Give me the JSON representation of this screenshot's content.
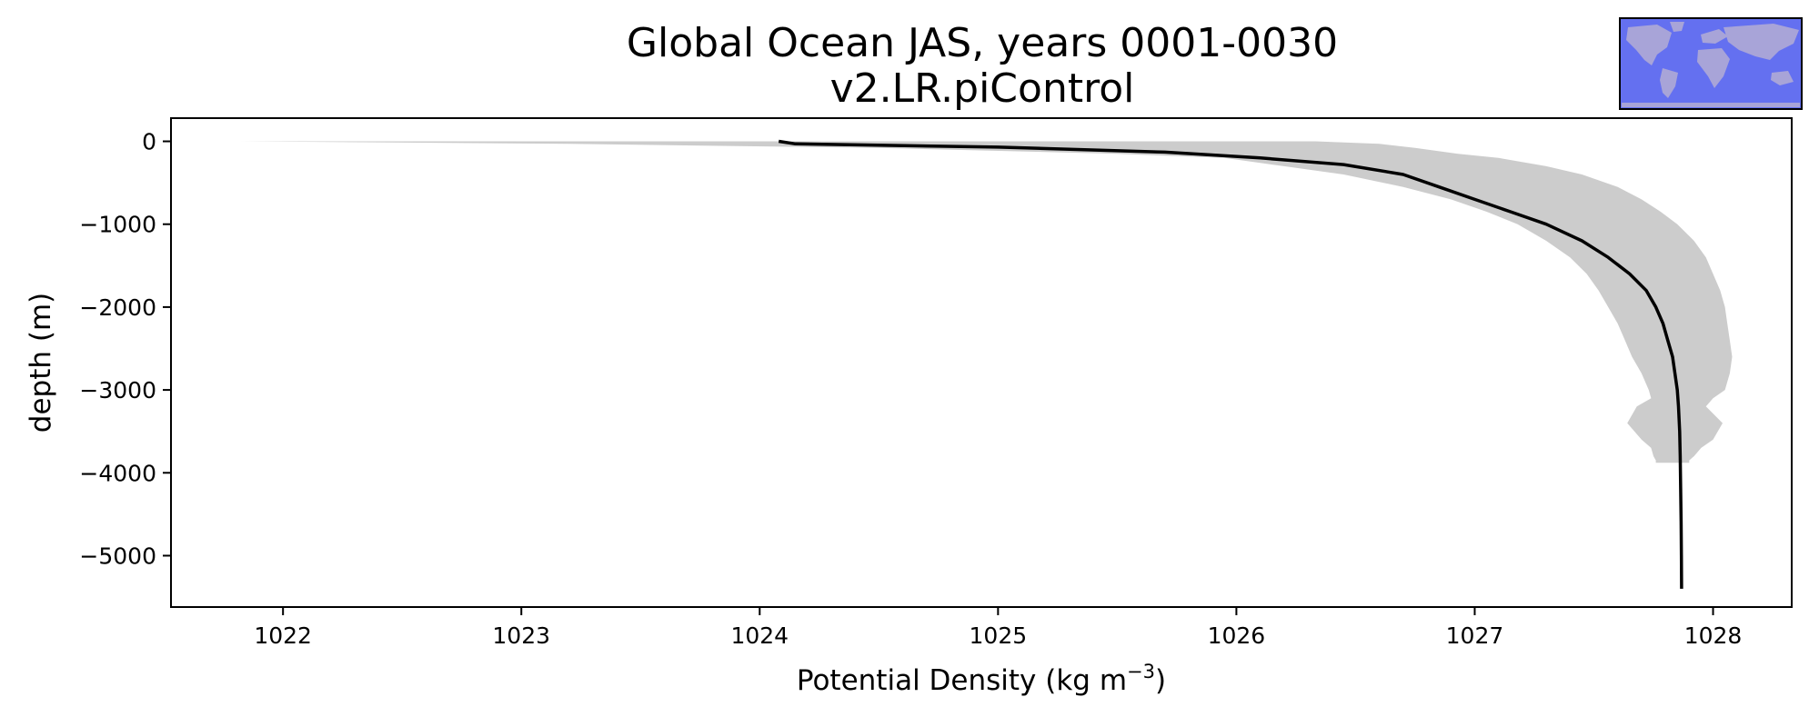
{
  "chart_data": {
    "type": "line",
    "title": "Global Ocean JAS, years 0001-0030",
    "subtitle": "v2.LR.piControl",
    "xlabel": "Potential Density (kg m",
    "xlabel_superscript": "−3",
    "xlabel_suffix": ")",
    "ylabel": "depth (m)",
    "xlim": [
      1021.53,
      1028.33
    ],
    "ylim": [
      -5620,
      280
    ],
    "x_ticks": [
      1022,
      1023,
      1024,
      1025,
      1026,
      1027,
      1028
    ],
    "x_tick_labels": [
      "1022",
      "1023",
      "1024",
      "1025",
      "1026",
      "1027",
      "1028"
    ],
    "y_ticks": [
      0,
      -1000,
      -2000,
      -3000,
      -4000,
      -5000
    ],
    "y_tick_labels": [
      "0",
      "−1000",
      "−2000",
      "−3000",
      "−4000",
      "−5000"
    ],
    "grid": false,
    "legend": "none",
    "inset": "world-map",
    "colors": {
      "line": "#000000",
      "band": "#cccccc",
      "map_ocean": "#6470f0",
      "map_land": "#a8a4d8"
    },
    "series": [
      {
        "depth": [
          0,
          -30,
          -70,
          -130,
          -200,
          -280,
          -400,
          -550,
          -700,
          -850,
          -1000,
          -1200,
          -1400,
          -1600,
          -1800,
          -2000,
          -2200,
          -2400,
          -2600,
          -2800,
          -3000,
          -3200,
          -3500,
          -3800,
          -4200,
          -4600,
          -5000,
          -5400
        ],
        "density": [
          1024.08,
          1024.15,
          1025.0,
          1025.7,
          1026.1,
          1026.45,
          1026.7,
          1026.85,
          1027.0,
          1027.15,
          1027.3,
          1027.45,
          1027.56,
          1027.65,
          1027.72,
          1027.76,
          1027.79,
          1027.81,
          1027.83,
          1027.84,
          1027.85,
          1027.855,
          1027.86,
          1027.862,
          1027.864,
          1027.866,
          1027.867,
          1027.868
        ]
      }
    ],
    "band": {
      "depth": [
        0,
        -30,
        -80,
        -150,
        -200,
        -300,
        -400,
        -550,
        -700,
        -850,
        -1000,
        -1200,
        -1400,
        -1600,
        -1800,
        -2000,
        -2200,
        -2400,
        -2600,
        -2800,
        -3000,
        -3100,
        -3200,
        -3400,
        -3600,
        -3700,
        -3800,
        -3850,
        -3880
      ],
      "lower": [
        1021.82,
        1023.2,
        1024.5,
        1025.5,
        1025.95,
        1026.2,
        1026.45,
        1026.7,
        1026.9,
        1027.05,
        1027.18,
        1027.3,
        1027.4,
        1027.47,
        1027.52,
        1027.56,
        1027.6,
        1027.63,
        1027.66,
        1027.7,
        1027.73,
        1027.74,
        1027.68,
        1027.64,
        1027.7,
        1027.74,
        1027.75,
        1027.76,
        1027.76
      ],
      "upper": [
        1026.33,
        1026.6,
        1026.75,
        1026.93,
        1027.1,
        1027.3,
        1027.45,
        1027.6,
        1027.7,
        1027.78,
        1027.85,
        1027.92,
        1027.97,
        1028.0,
        1028.03,
        1028.05,
        1028.06,
        1028.07,
        1028.08,
        1028.07,
        1028.05,
        1028.0,
        1027.97,
        1028.04,
        1028.0,
        1027.95,
        1027.92,
        1027.9,
        1027.9
      ]
    }
  }
}
